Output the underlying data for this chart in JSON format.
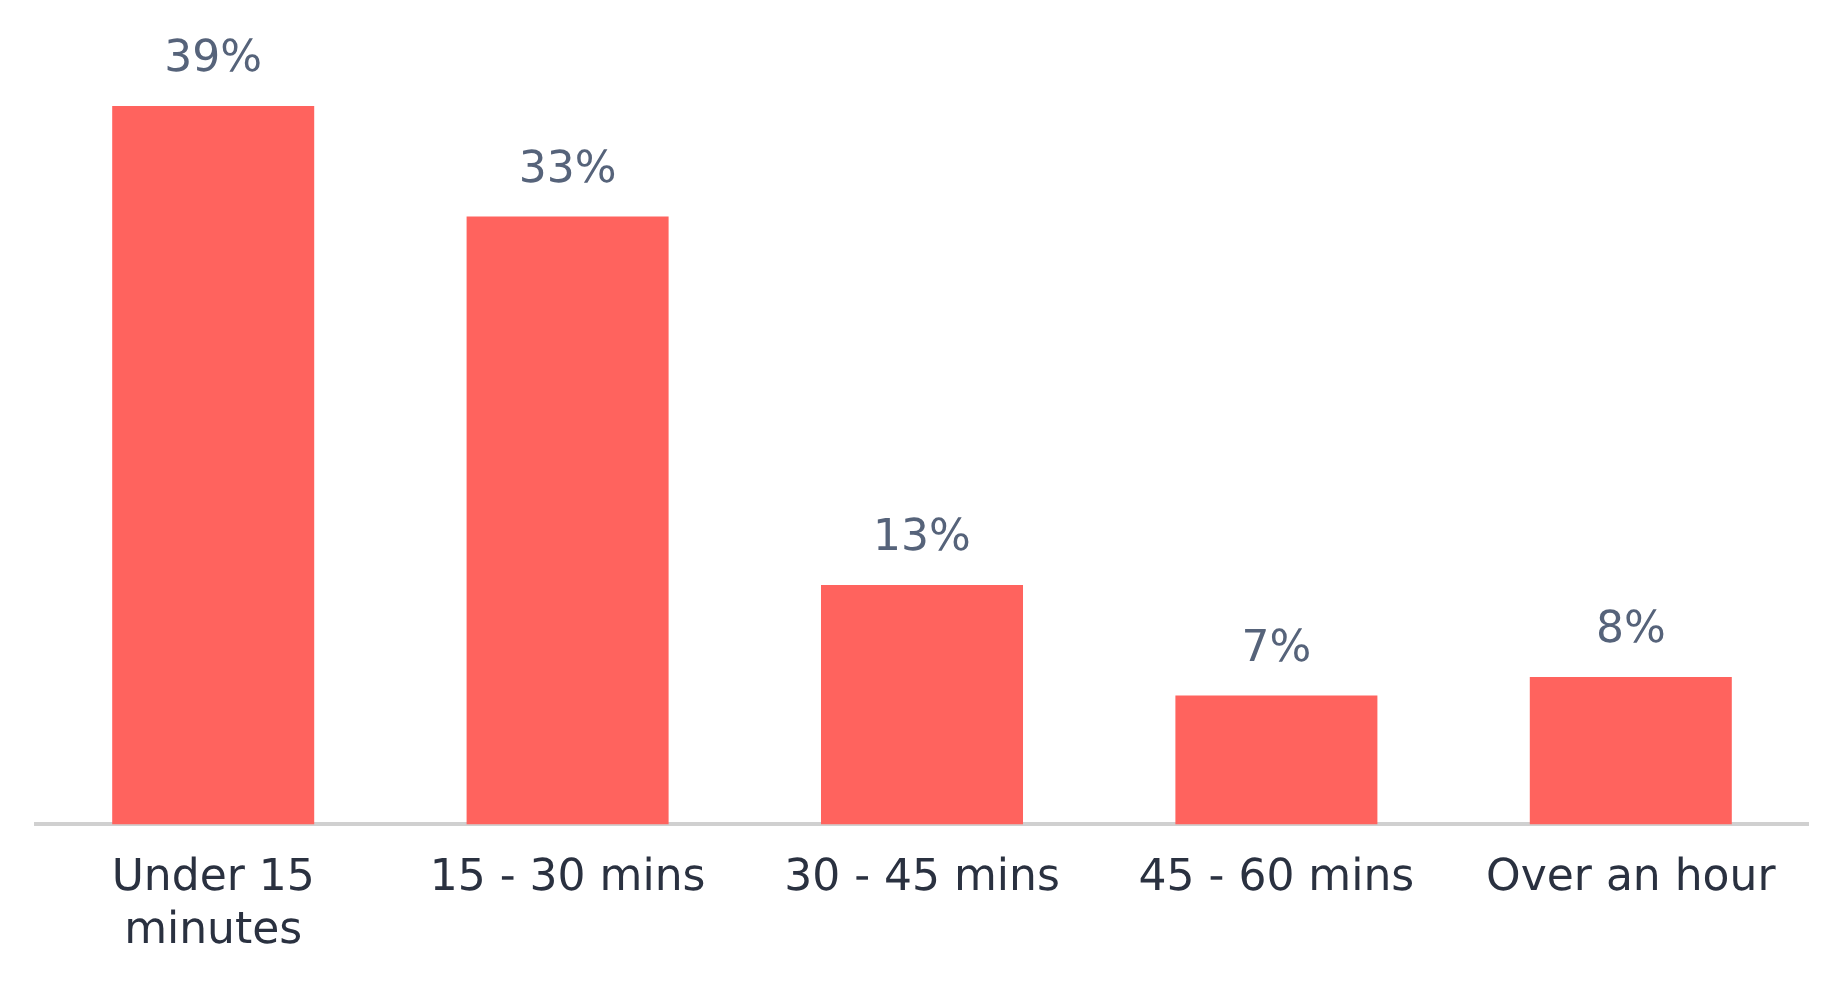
{
  "chart_data": {
    "type": "bar",
    "categories": [
      "Under 15 minutes",
      "15 - 30 mins",
      "30 - 45 mins",
      "45 - 60 mins",
      "Over an hour"
    ],
    "values": [
      39,
      33,
      13,
      7,
      8
    ],
    "value_labels": [
      "39%",
      "33%",
      "13%",
      "7%",
      "8%"
    ],
    "color": "#ff635e",
    "grid": false,
    "legend": false,
    "tick_labels": "x"
  }
}
